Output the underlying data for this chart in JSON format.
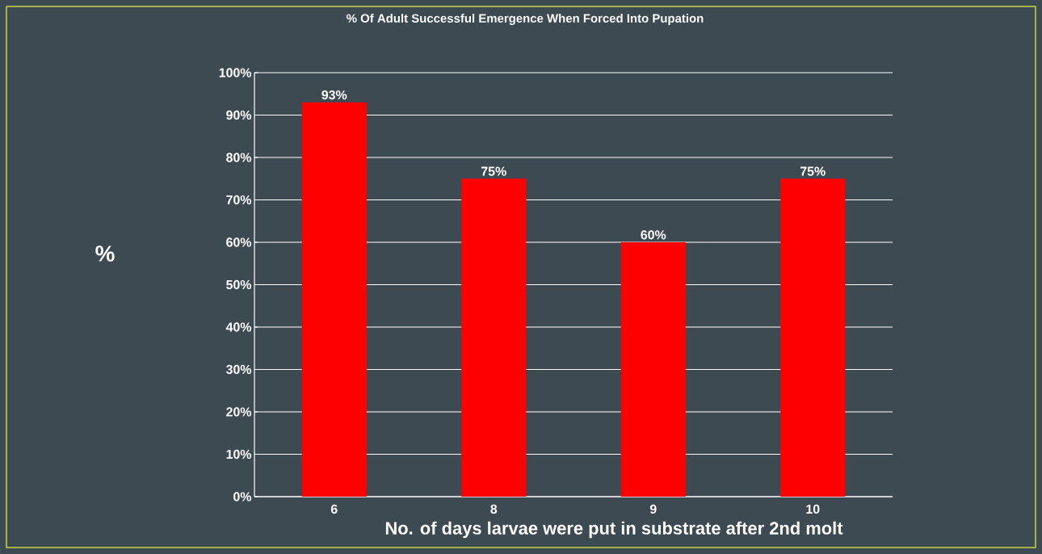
{
  "chart_data": {
    "type": "bar",
    "title": "% Of Adult Successful Emergence When Forced Into Pupation",
    "xlabel": "No. of days larvae were put in substrate after 2nd molt",
    "ylabel": "%",
    "categories": [
      "6",
      "8",
      "9",
      "10"
    ],
    "values": [
      93,
      75,
      60,
      75
    ],
    "value_labels": [
      "93%",
      "75%",
      "60%",
      "75%"
    ],
    "color": "#ff0000",
    "ylim": [
      0,
      100
    ],
    "yticks": [
      {
        "value": 0,
        "label": "0%"
      },
      {
        "value": 10,
        "label": "10%"
      },
      {
        "value": 20,
        "label": "20%"
      },
      {
        "value": 30,
        "label": "30%"
      },
      {
        "value": 40,
        "label": "40%"
      },
      {
        "value": 50,
        "label": "50%"
      },
      {
        "value": 60,
        "label": "60%"
      },
      {
        "value": 70,
        "label": "70%"
      },
      {
        "value": 80,
        "label": "80%"
      },
      {
        "value": 90,
        "label": "90%"
      },
      {
        "value": 100,
        "label": "100%"
      }
    ],
    "grid": "y"
  }
}
